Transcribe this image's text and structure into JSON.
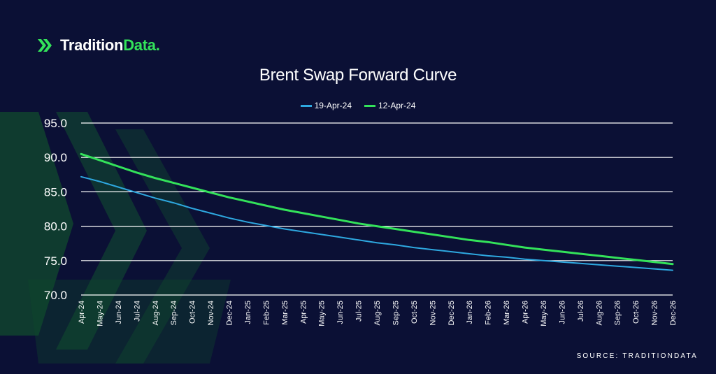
{
  "brand": {
    "name_main": "Tradition",
    "name_accent": "Data.",
    "accent_color": "#33e25a"
  },
  "source_text": "SOURCE: TRADITIONDATA",
  "colors": {
    "background": "#0b1035",
    "grid": "#ffffff",
    "text": "#ffffff"
  },
  "chart_data": {
    "type": "line",
    "title": "Brent Swap Forward Curve",
    "xlabel": "",
    "ylabel": "",
    "ylim": [
      70,
      95
    ],
    "yticks": [
      "70.0",
      "75.0",
      "80.0",
      "85.0",
      "90.0",
      "95.0"
    ],
    "grid": true,
    "legend_position": "top-center",
    "categories": [
      "Apr-24",
      "May-24",
      "Jun-24",
      "Jul-24",
      "Aug-24",
      "Sep-24",
      "Oct-24",
      "Nov-24",
      "Dec-24",
      "Jan-25",
      "Feb-25",
      "Mar-25",
      "Apr-25",
      "May-25",
      "Jun-25",
      "Jul-25",
      "Aug-25",
      "Sep-25",
      "Oct-25",
      "Nov-25",
      "Dec-25",
      "Jan-26",
      "Feb-26",
      "Mar-26",
      "Apr-26",
      "May-26",
      "Jun-26",
      "Jul-26",
      "Aug-26",
      "Sep-26",
      "Oct-26",
      "Nov-26",
      "Dec-26"
    ],
    "series": [
      {
        "name": "19-Apr-24",
        "color": "#2ea8e0",
        "values": [
          87.2,
          86.5,
          85.7,
          84.9,
          84.1,
          83.4,
          82.6,
          81.9,
          81.2,
          80.6,
          80.1,
          79.6,
          79.2,
          78.8,
          78.4,
          78.0,
          77.6,
          77.3,
          76.9,
          76.6,
          76.3,
          76.0,
          75.7,
          75.5,
          75.2,
          75.0,
          74.8,
          74.6,
          74.4,
          74.2,
          74.0,
          73.8,
          73.6
        ]
      },
      {
        "name": "12-Apr-24",
        "color": "#33e25a",
        "values": [
          90.5,
          89.6,
          88.7,
          87.8,
          87.0,
          86.3,
          85.6,
          84.9,
          84.2,
          83.6,
          83.0,
          82.4,
          81.9,
          81.4,
          80.9,
          80.4,
          80.0,
          79.6,
          79.2,
          78.8,
          78.4,
          78.0,
          77.7,
          77.3,
          76.9,
          76.6,
          76.3,
          76.0,
          75.7,
          75.4,
          75.1,
          74.8,
          74.5
        ]
      }
    ]
  }
}
